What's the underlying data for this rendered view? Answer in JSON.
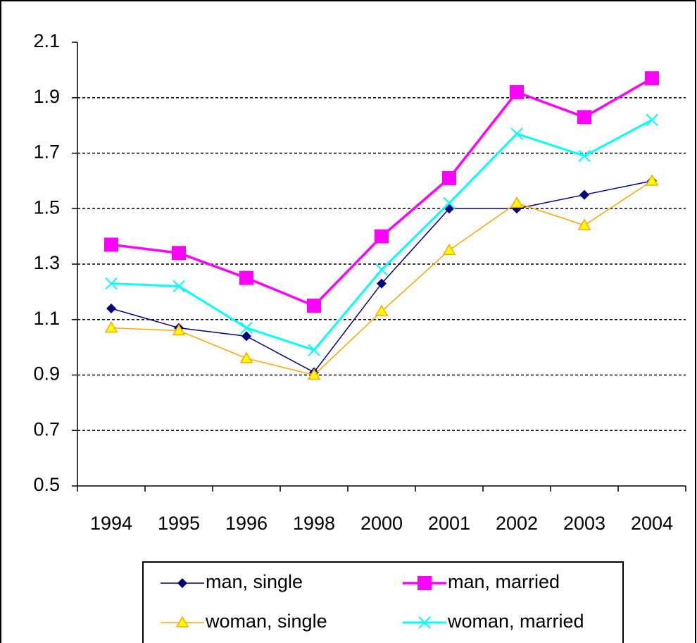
{
  "chart_data": {
    "type": "line",
    "categories": [
      "1994",
      "1995",
      "1996",
      "1998",
      "2000",
      "2001",
      "2002",
      "2003",
      "2004"
    ],
    "series": [
      {
        "name": "man, single",
        "color": "#000080",
        "marker": "diamond",
        "values": [
          1.14,
          1.07,
          1.04,
          0.91,
          1.23,
          1.5,
          1.5,
          1.55,
          1.6
        ]
      },
      {
        "name": "man, married",
        "color": "#ff00ff",
        "marker": "square",
        "values": [
          1.37,
          1.34,
          1.25,
          1.15,
          1.4,
          1.61,
          1.92,
          1.83,
          1.97
        ]
      },
      {
        "name": "woman, single",
        "color": "#ffa500",
        "marker": "triangle",
        "values": [
          1.07,
          1.06,
          0.96,
          0.9,
          1.13,
          1.35,
          1.52,
          1.44,
          1.6
        ]
      },
      {
        "name": "woman, married",
        "color": "#00ffff",
        "marker": "cross",
        "values": [
          1.23,
          1.22,
          1.07,
          0.99,
          1.28,
          1.52,
          1.77,
          1.69,
          1.82
        ]
      }
    ],
    "ylim": [
      0.5,
      2.1
    ],
    "yticks": [
      0.5,
      0.7,
      0.9,
      1.1,
      1.3,
      1.5,
      1.7,
      1.9,
      2.1
    ],
    "grid": true
  }
}
